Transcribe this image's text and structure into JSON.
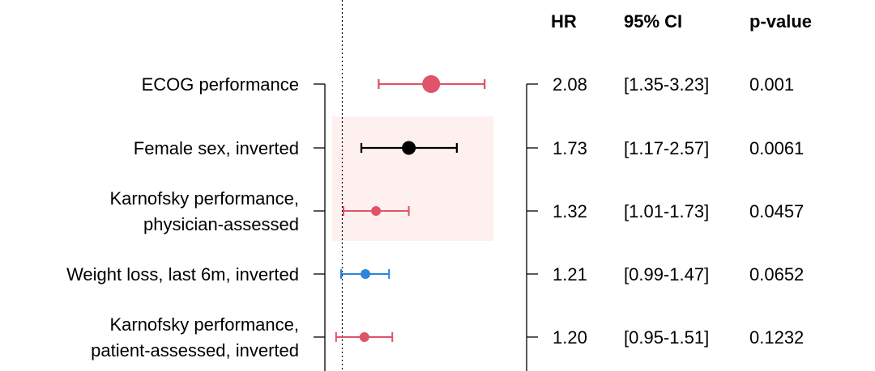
{
  "chart_data": {
    "type": "forest",
    "headers": {
      "hr": "HR",
      "ci": "95% CI",
      "p": "p-value"
    },
    "reference_line": 1.0,
    "x_range": [
      0.92,
      3.45
    ],
    "x_scale": "log",
    "highlight_rows": [
      1,
      2
    ],
    "colors": {
      "risk": "#df536b",
      "protective": "#2c84dd",
      "highlight": "#000000",
      "band": "#fdf0ef"
    },
    "rows": [
      {
        "label_lines": [
          "ECOG performance"
        ],
        "hr": 2.08,
        "lo": 1.35,
        "hi": 3.23,
        "hr_text": "2.08",
        "ci_text": "[1.35-3.23]",
        "p_text": "0.001",
        "color": "#df536b",
        "size": "large"
      },
      {
        "label_lines": [
          "Female sex, inverted"
        ],
        "hr": 1.73,
        "lo": 1.17,
        "hi": 2.57,
        "hr_text": "1.73",
        "ci_text": "[1.17-2.57]",
        "p_text": "0.0061",
        "color": "#000000",
        "size": "medium"
      },
      {
        "label_lines": [
          "Karnofsky performance,",
          "physician-assessed"
        ],
        "hr": 1.32,
        "lo": 1.01,
        "hi": 1.73,
        "hr_text": "1.32",
        "ci_text": "[1.01-1.73]",
        "p_text": "0.0457",
        "color": "#df536b",
        "size": "small"
      },
      {
        "label_lines": [
          "Weight loss, last 6m, inverted"
        ],
        "hr": 1.21,
        "lo": 0.99,
        "hi": 1.47,
        "hr_text": "1.21",
        "ci_text": "[0.99-1.47]",
        "p_text": "0.0652",
        "color": "#2c84dd",
        "size": "small"
      },
      {
        "label_lines": [
          "Karnofsky performance,",
          "patient-assessed, inverted"
        ],
        "hr": 1.2,
        "lo": 0.95,
        "hi": 1.51,
        "hr_text": "1.20",
        "ci_text": "[0.95-1.51]",
        "p_text": "0.1232",
        "color": "#df536b",
        "size": "small"
      }
    ]
  }
}
